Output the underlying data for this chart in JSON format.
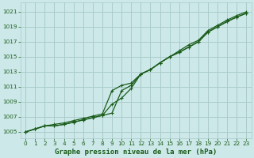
{
  "title": "Graphe pression niveau de la mer (hPa)",
  "bg_color": "#cce8e8",
  "grid_color": "#aacccc",
  "line_color": "#1a5c1a",
  "xlim": [
    -0.5,
    23.5
  ],
  "ylim": [
    1004.2,
    1022.2
  ],
  "xticks": [
    0,
    1,
    2,
    3,
    4,
    5,
    6,
    7,
    8,
    9,
    10,
    11,
    12,
    13,
    14,
    15,
    16,
    17,
    18,
    19,
    20,
    21,
    22,
    23
  ],
  "yticks": [
    1005,
    1007,
    1009,
    1011,
    1013,
    1015,
    1017,
    1019,
    1021
  ],
  "line1_x": [
    0,
    1,
    2,
    3,
    4,
    5,
    6,
    7,
    8,
    9,
    10,
    11,
    12,
    13,
    14,
    15,
    16,
    17,
    18,
    19,
    20,
    21,
    22,
    23
  ],
  "line1_y": [
    1005.0,
    1005.4,
    1005.8,
    1006.0,
    1006.2,
    1006.5,
    1006.8,
    1007.1,
    1007.4,
    1010.5,
    1011.2,
    1011.5,
    1012.7,
    1013.3,
    1014.2,
    1015.0,
    1015.8,
    1016.6,
    1017.2,
    1018.5,
    1019.2,
    1019.9,
    1020.5,
    1021.0
  ],
  "line2_x": [
    0,
    1,
    2,
    3,
    4,
    5,
    6,
    7,
    8,
    9,
    10,
    11,
    12,
    13,
    14,
    15,
    16,
    17,
    18,
    19,
    20,
    21,
    22,
    23
  ],
  "line2_y": [
    1005.0,
    1005.4,
    1005.8,
    1005.8,
    1006.0,
    1006.3,
    1006.6,
    1006.9,
    1007.2,
    1007.5,
    1010.5,
    1011.2,
    1012.7,
    1013.3,
    1014.2,
    1015.0,
    1015.6,
    1016.3,
    1017.0,
    1018.3,
    1019.0,
    1019.7,
    1020.3,
    1020.8
  ],
  "line3_x": [
    0,
    1,
    2,
    3,
    4,
    5,
    6,
    7,
    8,
    9,
    10,
    11,
    12,
    13,
    14,
    15,
    16,
    17,
    18,
    19,
    20,
    21,
    22,
    23
  ],
  "line3_y": [
    1005.0,
    1005.4,
    1005.8,
    1005.8,
    1006.0,
    1006.3,
    1006.6,
    1006.9,
    1007.2,
    1008.7,
    1009.5,
    1010.8,
    1012.7,
    1013.3,
    1014.2,
    1015.0,
    1015.6,
    1016.3,
    1017.0,
    1018.3,
    1019.0,
    1019.7,
    1020.3,
    1020.8
  ],
  "xlabel_fontsize": 6.5,
  "tick_fontsize": 5.2
}
